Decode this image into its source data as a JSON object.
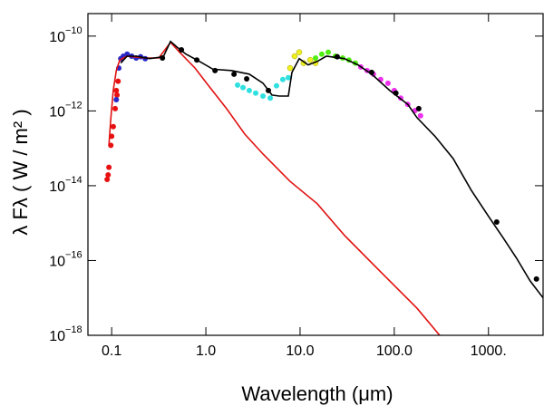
{
  "chart_data": {
    "type": "scatter",
    "x_label": "Wavelength (μm)",
    "y_label": "λ Fλ  ( W / m² )",
    "xscale": "log",
    "yscale": "log",
    "xlim": [
      0.056,
      3800
    ],
    "ylim": [
      1e-18,
      4e-10
    ],
    "xticks": [
      0.1,
      {
        "value": 1,
        "label": "1.0"
      },
      {
        "value": 10,
        "label": "10.0"
      },
      {
        "value": 100,
        "label": "100.0"
      },
      {
        "value": 1000,
        "label": "1000."
      }
    ],
    "yticks": [
      {
        "value": 1e-18,
        "label": "10",
        "exponent": "−18"
      },
      {
        "value": 1e-16,
        "label": "10",
        "exponent": "−16"
      },
      {
        "value": 1e-14,
        "label": "10",
        "exponent": "−14"
      },
      {
        "value": 1e-12,
        "label": "10",
        "exponent": "−12"
      },
      {
        "value": 1e-10,
        "label": "10",
        "exponent": "−10"
      }
    ],
    "series": [
      {
        "style": "points",
        "color": "#e81010",
        "x": [
          0.0895,
          0.0917,
          0.0935,
          0.098,
          0.1,
          0.104,
          0.109,
          0.112,
          0.117,
          0.114
        ],
        "values": [
          1.47e-14,
          1.95e-14,
          3.1e-14,
          1.2e-13,
          2.1e-13,
          3.8e-13,
          1.15e-12,
          3.5e-12,
          6.2e-12,
          2.65e-12
        ]
      },
      {
        "style": "points",
        "color": "#2828c8",
        "x": [
          0.119,
          0.125,
          0.133,
          0.146,
          0.163,
          0.182,
          0.203,
          0.227,
          0.112
        ],
        "values": [
          1.4e-11,
          2.5e-11,
          2.9e-11,
          3.3e-11,
          2.9e-11,
          2.6e-11,
          2.8e-11,
          2.5e-11,
          2e-12
        ]
      },
      {
        "style": "points",
        "color": "#30e0e0",
        "x": [
          2.17,
          2.48,
          2.89,
          3.38,
          4.04,
          4.82,
          5.62,
          6.56,
          7.5
        ],
        "values": [
          4.9e-12,
          4.2e-12,
          3.5e-12,
          3e-12,
          2.5e-12,
          2.2e-12,
          4.7e-12,
          6.9e-12,
          7.7e-12
        ]
      },
      {
        "style": "points",
        "color": "#f0f020",
        "x": [
          7.84,
          8.75,
          9.78,
          10.9,
          12.8,
          14.6
        ],
        "values": [
          1.4e-11,
          2.9e-11,
          3.7e-11,
          1.9e-11,
          2.3e-11,
          1.9e-11
        ]
      },
      {
        "style": "points",
        "color": "#50ee10",
        "x": [
          14.6,
          17.0,
          19.9,
          23.7,
          28.3,
          33.0,
          38.6
        ],
        "values": [
          2.6e-11,
          3.3e-11,
          3.7e-11,
          2.9e-11,
          2.6e-11,
          2.3e-11,
          1.9e-11
        ]
      },
      {
        "style": "points",
        "color": "#ee30ee",
        "x": [
          44.1,
          51.5,
          60.1,
          71.7,
          85.7,
          100,
          117,
          139,
          166,
          190
        ],
        "values": [
          1.5e-11,
          1.2e-11,
          9.6e-12,
          6.9e-12,
          5.5e-12,
          3.5e-12,
          2.2e-12,
          1.5e-12,
          1.02e-12,
          7.4e-13
        ]
      },
      {
        "style": "line",
        "color": "#e01010",
        "x": [
          0.0935,
          0.098,
          0.104,
          0.112,
          0.122,
          0.146,
          0.227,
          0.316,
          0.422,
          0.55,
          0.767,
          1.07,
          1.66,
          2.59,
          4.04,
          7.84,
          15.2,
          29.6,
          71.7,
          174,
          303
        ],
        "values": [
          1.2e-13,
          6.6e-13,
          3.5e-12,
          1.2e-11,
          2.3e-11,
          2.9e-11,
          2.6e-11,
          2.6e-11,
          6.8e-11,
          3.3e-11,
          1.4e-11,
          4.7e-12,
          1.15e-12,
          2.4e-13,
          7e-14,
          1.3e-14,
          3.3e-15,
          4.7e-16,
          5e-17,
          5.3e-18,
          1e-18
        ]
      },
      {
        "style": "line",
        "color": "#000000",
        "x": [
          0.125,
          0.146,
          0.182,
          0.253,
          0.353,
          0.422,
          0.492,
          0.614,
          0.857,
          1.19,
          1.86,
          2.89,
          4.04,
          5.03,
          6.01,
          7.5,
          8.19,
          9.78,
          12.2,
          15.2,
          19.0,
          29.6,
          41.2,
          57.5,
          89.5,
          139,
          174,
          271,
          422,
          656,
          1023,
          1426,
          1988,
          2770,
          3800
        ],
        "values": [
          1.9e-11,
          2.9e-11,
          2.9e-11,
          2.5e-11,
          2.8e-11,
          7.2e-11,
          5.1e-11,
          3.3e-11,
          2.1e-11,
          1.3e-11,
          1.2e-11,
          9.6e-12,
          5.5e-12,
          2.65e-12,
          2.5e-12,
          2.5e-12,
          1.07e-11,
          2.5e-11,
          1.7e-11,
          2.1e-11,
          2.9e-11,
          2.5e-11,
          1.7e-11,
          9.6e-12,
          3.5e-12,
          1.5e-12,
          6.6e-13,
          2.1e-13,
          5.3e-14,
          7.6e-15,
          1.4e-15,
          4.1e-16,
          1.15e-16,
          2.85e-17,
          1e-17
        ]
      },
      {
        "style": "points",
        "color": "#000000",
        "x": [
          0.346,
          0.55,
          0.801,
          1.25,
          1.99,
          2.71,
          4.61,
          24.8,
          57.5,
          104,
          182,
          1222,
          3230
        ],
        "values": [
          2.6e-11,
          4.3e-11,
          2.3e-11,
          1.2e-11,
          9.6e-12,
          7.2e-12,
          3.5e-12,
          2.8e-11,
          1.07e-11,
          3e-12,
          1.15e-12,
          1.07e-15,
          3.2e-17
        ]
      }
    ]
  }
}
